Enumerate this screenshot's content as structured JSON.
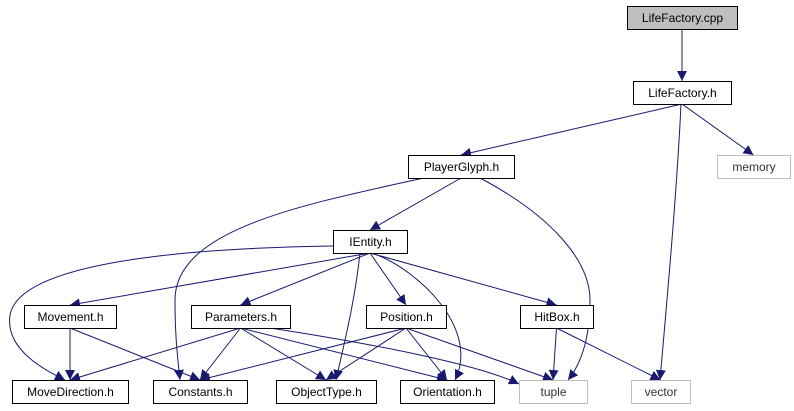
{
  "colors": {
    "edge": "#191970",
    "root_fill": "#bfbfbf",
    "node_fill": "#ffffff",
    "node_border": "#000000",
    "system_border": "#bfbfbf"
  },
  "nodes": [
    {
      "id": "lifefactory_cpp",
      "label": "LifeFactory.cpp",
      "kind": "root"
    },
    {
      "id": "lifefactory_h",
      "label": "LifeFactory.h",
      "kind": "header"
    },
    {
      "id": "memory",
      "label": "memory",
      "kind": "system"
    },
    {
      "id": "playerglyph_h",
      "label": "PlayerGlyph.h",
      "kind": "header"
    },
    {
      "id": "ientity_h",
      "label": "IEntity.h",
      "kind": "header"
    },
    {
      "id": "movement_h",
      "label": "Movement.h",
      "kind": "header"
    },
    {
      "id": "parameters_h",
      "label": "Parameters.h",
      "kind": "header"
    },
    {
      "id": "position_h",
      "label": "Position.h",
      "kind": "header"
    },
    {
      "id": "hitbox_h",
      "label": "HitBox.h",
      "kind": "header"
    },
    {
      "id": "movedirection_h",
      "label": "MoveDirection.h",
      "kind": "header"
    },
    {
      "id": "constants_h",
      "label": "Constants.h",
      "kind": "header"
    },
    {
      "id": "objecttype_h",
      "label": "ObjectType.h",
      "kind": "header"
    },
    {
      "id": "orientation_h",
      "label": "Orientation.h",
      "kind": "header"
    },
    {
      "id": "tuple",
      "label": "tuple",
      "kind": "system"
    },
    {
      "id": "vector",
      "label": "vector",
      "kind": "system"
    }
  ],
  "edges": [
    [
      "lifefactory_cpp",
      "lifefactory_h"
    ],
    [
      "lifefactory_h",
      "playerglyph_h"
    ],
    [
      "lifefactory_h",
      "memory"
    ],
    [
      "lifefactory_h",
      "vector"
    ],
    [
      "playerglyph_h",
      "ientity_h"
    ],
    [
      "playerglyph_h",
      "constants_h"
    ],
    [
      "playerglyph_h",
      "tuple"
    ],
    [
      "ientity_h",
      "movement_h"
    ],
    [
      "ientity_h",
      "parameters_h"
    ],
    [
      "ientity_h",
      "position_h"
    ],
    [
      "ientity_h",
      "hitbox_h"
    ],
    [
      "ientity_h",
      "movedirection_h"
    ],
    [
      "ientity_h",
      "objecttype_h"
    ],
    [
      "ientity_h",
      "orientation_h"
    ],
    [
      "movement_h",
      "movedirection_h"
    ],
    [
      "movement_h",
      "constants_h"
    ],
    [
      "parameters_h",
      "movedirection_h"
    ],
    [
      "parameters_h",
      "constants_h"
    ],
    [
      "parameters_h",
      "objecttype_h"
    ],
    [
      "parameters_h",
      "orientation_h"
    ],
    [
      "parameters_h",
      "tuple"
    ],
    [
      "position_h",
      "constants_h"
    ],
    [
      "position_h",
      "objecttype_h"
    ],
    [
      "position_h",
      "orientation_h"
    ],
    [
      "position_h",
      "tuple"
    ],
    [
      "hitbox_h",
      "tuple"
    ],
    [
      "hitbox_h",
      "vector"
    ]
  ]
}
